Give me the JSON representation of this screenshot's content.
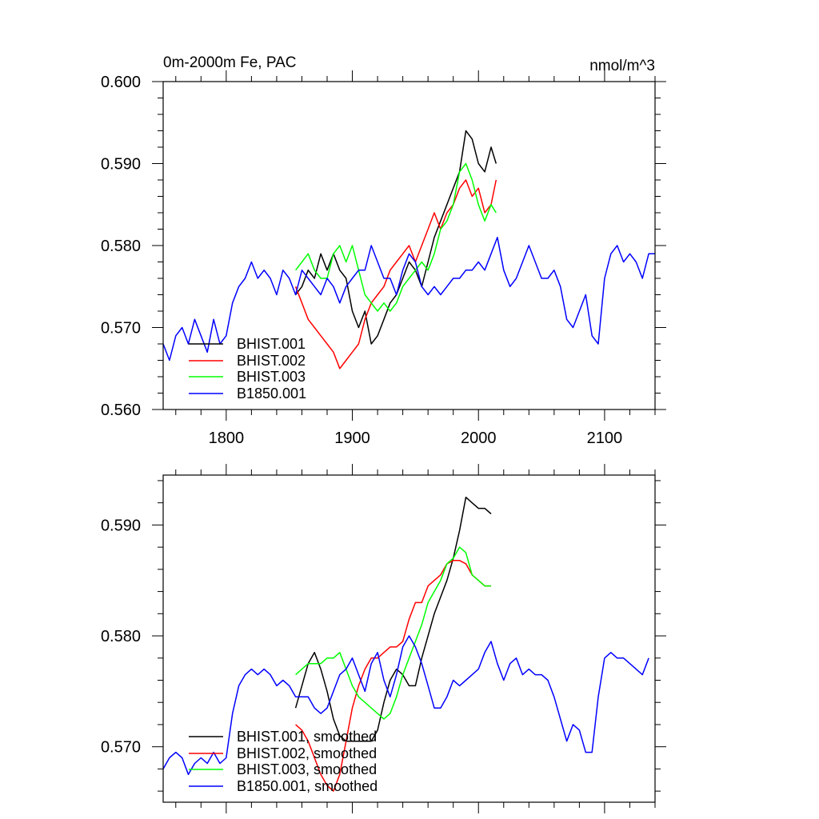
{
  "chart_data": [
    {
      "type": "line",
      "title": "0m-2000m Fe, PAC",
      "units": "nmol/m^3",
      "xlim": [
        1750,
        2140
      ],
      "ylim": [
        0.56,
        0.6
      ],
      "x_ticks": [
        1800,
        1900,
        2000,
        2100
      ],
      "x_tick_labels": [
        "1800",
        "1900",
        "2000",
        "2100"
      ],
      "y_ticks": [
        0.56,
        0.57,
        0.58,
        0.59,
        0.6
      ],
      "y_tick_labels": [
        "0.560",
        "0.570",
        "0.580",
        "0.590",
        "0.600"
      ],
      "grid": false,
      "legend_position": "bottom-left",
      "series": [
        {
          "name": "BHIST.001",
          "color": "#000000",
          "x": [
            1855,
            1860,
            1865,
            1870,
            1875,
            1880,
            1885,
            1890,
            1895,
            1900,
            1905,
            1910,
            1915,
            1920,
            1925,
            1930,
            1935,
            1940,
            1945,
            1950,
            1955,
            1960,
            1965,
            1970,
            1975,
            1980,
            1985,
            1990,
            1995,
            2000,
            2005,
            2010,
            2014
          ],
          "y": [
            0.574,
            0.575,
            0.577,
            0.576,
            0.579,
            0.577,
            0.579,
            0.577,
            0.576,
            0.572,
            0.57,
            0.572,
            0.568,
            0.569,
            0.571,
            0.573,
            0.574,
            0.576,
            0.578,
            0.577,
            0.575,
            0.578,
            0.581,
            0.583,
            0.585,
            0.587,
            0.589,
            0.594,
            0.593,
            0.59,
            0.589,
            0.592,
            0.59
          ]
        },
        {
          "name": "BHIST.002",
          "color": "#ff0000",
          "x": [
            1855,
            1860,
            1865,
            1870,
            1875,
            1880,
            1885,
            1890,
            1895,
            1900,
            1905,
            1910,
            1915,
            1920,
            1925,
            1930,
            1935,
            1940,
            1945,
            1950,
            1955,
            1960,
            1965,
            1970,
            1975,
            1980,
            1985,
            1990,
            1995,
            2000,
            2005,
            2010,
            2014
          ],
          "y": [
            0.575,
            0.573,
            0.571,
            0.57,
            0.569,
            0.568,
            0.567,
            0.565,
            0.566,
            0.567,
            0.568,
            0.571,
            0.573,
            0.574,
            0.575,
            0.577,
            0.578,
            0.579,
            0.58,
            0.578,
            0.58,
            0.582,
            0.584,
            0.582,
            0.584,
            0.585,
            0.587,
            0.588,
            0.586,
            0.587,
            0.584,
            0.585,
            0.588
          ]
        },
        {
          "name": "BHIST.003",
          "color": "#00ff00",
          "x": [
            1855,
            1860,
            1865,
            1870,
            1875,
            1880,
            1885,
            1890,
            1895,
            1900,
            1905,
            1910,
            1915,
            1920,
            1925,
            1930,
            1935,
            1940,
            1945,
            1950,
            1955,
            1960,
            1965,
            1970,
            1975,
            1980,
            1985,
            1990,
            1995,
            2000,
            2005,
            2010,
            2014
          ],
          "y": [
            0.577,
            0.578,
            0.579,
            0.577,
            0.576,
            0.576,
            0.579,
            0.58,
            0.578,
            0.58,
            0.577,
            0.574,
            0.573,
            0.572,
            0.573,
            0.572,
            0.573,
            0.575,
            0.576,
            0.577,
            0.578,
            0.577,
            0.579,
            0.582,
            0.583,
            0.585,
            0.589,
            0.59,
            0.588,
            0.585,
            0.583,
            0.585,
            0.584
          ]
        },
        {
          "name": "B1850.001",
          "color": "#0000ff",
          "x": [
            1750,
            1755,
            1760,
            1765,
            1770,
            1775,
            1780,
            1785,
            1790,
            1795,
            1800,
            1805,
            1810,
            1815,
            1820,
            1825,
            1830,
            1835,
            1840,
            1845,
            1850,
            1855,
            1860,
            1865,
            1870,
            1875,
            1880,
            1885,
            1890,
            1895,
            1900,
            1905,
            1910,
            1915,
            1920,
            1925,
            1930,
            1935,
            1940,
            1945,
            1950,
            1955,
            1960,
            1965,
            1970,
            1975,
            1980,
            1985,
            1990,
            1995,
            2000,
            2005,
            2010,
            2015,
            2020,
            2025,
            2030,
            2035,
            2040,
            2045,
            2050,
            2055,
            2060,
            2065,
            2070,
            2075,
            2080,
            2085,
            2090,
            2095,
            2100,
            2105,
            2110,
            2115,
            2120,
            2125,
            2130,
            2135,
            2140
          ],
          "y": [
            0.568,
            0.566,
            0.569,
            0.57,
            0.568,
            0.571,
            0.569,
            0.567,
            0.571,
            0.568,
            0.569,
            0.573,
            0.575,
            0.576,
            0.578,
            0.576,
            0.577,
            0.576,
            0.574,
            0.577,
            0.576,
            0.574,
            0.577,
            0.576,
            0.575,
            0.574,
            0.576,
            0.575,
            0.573,
            0.575,
            0.576,
            0.577,
            0.577,
            0.58,
            0.578,
            0.576,
            0.576,
            0.574,
            0.577,
            0.579,
            0.578,
            0.575,
            0.574,
            0.575,
            0.574,
            0.575,
            0.576,
            0.576,
            0.577,
            0.577,
            0.578,
            0.577,
            0.579,
            0.581,
            0.577,
            0.575,
            0.576,
            0.578,
            0.58,
            0.578,
            0.576,
            0.576,
            0.577,
            0.575,
            0.571,
            0.57,
            0.572,
            0.574,
            0.569,
            0.568,
            0.576,
            0.579,
            0.58,
            0.578,
            0.579,
            0.578,
            0.576,
            0.579,
            0.579
          ]
        }
      ]
    },
    {
      "type": "line",
      "title": "",
      "xlim": [
        1750,
        2140
      ],
      "ylim": [
        0.565,
        0.5945
      ],
      "x_ticks": [
        1800,
        1900,
        2000,
        2100
      ],
      "y_ticks": [
        0.57,
        0.58,
        0.59
      ],
      "y_tick_labels": [
        "0.570",
        "0.580",
        "0.590"
      ],
      "grid": false,
      "legend_position": "bottom-left",
      "series": [
        {
          "name": "BHIST.001, smoothed",
          "color": "#000000",
          "x": [
            1855,
            1860,
            1865,
            1870,
            1875,
            1880,
            1885,
            1890,
            1895,
            1900,
            1905,
            1910,
            1915,
            1920,
            1925,
            1930,
            1935,
            1940,
            1945,
            1950,
            1955,
            1960,
            1965,
            1970,
            1975,
            1980,
            1985,
            1990,
            1995,
            2000,
            2005,
            2010
          ],
          "y": [
            0.5735,
            0.5755,
            0.5775,
            0.5785,
            0.577,
            0.575,
            0.5725,
            0.571,
            0.5705,
            0.5705,
            0.5705,
            0.5705,
            0.5705,
            0.5715,
            0.574,
            0.576,
            0.577,
            0.5765,
            0.5755,
            0.5755,
            0.578,
            0.58,
            0.582,
            0.5835,
            0.585,
            0.587,
            0.5895,
            0.5925,
            0.592,
            0.5915,
            0.5915,
            0.591
          ]
        },
        {
          "name": "BHIST.002, smoothed",
          "color": "#ff0000",
          "x": [
            1855,
            1860,
            1865,
            1870,
            1875,
            1880,
            1885,
            1890,
            1895,
            1900,
            1905,
            1910,
            1915,
            1920,
            1925,
            1930,
            1935,
            1940,
            1945,
            1950,
            1955,
            1960,
            1965,
            1970,
            1975,
            1980,
            1985,
            1990,
            1995,
            2000,
            2005,
            2010
          ],
          "y": [
            0.572,
            0.5715,
            0.5705,
            0.569,
            0.5675,
            0.5665,
            0.566,
            0.5675,
            0.5705,
            0.5735,
            0.5755,
            0.577,
            0.578,
            0.578,
            0.5785,
            0.579,
            0.579,
            0.5795,
            0.5815,
            0.583,
            0.583,
            0.5845,
            0.585,
            0.5855,
            0.5865,
            0.5868,
            0.5868,
            0.5865,
            0.5855,
            0.585,
            0.5845,
            0.5845
          ]
        },
        {
          "name": "BHIST.003, smoothed",
          "color": "#00ff00",
          "x": [
            1855,
            1860,
            1865,
            1870,
            1875,
            1880,
            1885,
            1890,
            1895,
            1900,
            1905,
            1910,
            1915,
            1920,
            1925,
            1930,
            1935,
            1940,
            1945,
            1950,
            1955,
            1960,
            1965,
            1970,
            1975,
            1980,
            1985,
            1990,
            1995,
            2000,
            2005,
            2010
          ],
          "y": [
            0.5765,
            0.577,
            0.5775,
            0.5775,
            0.5775,
            0.578,
            0.578,
            0.5785,
            0.577,
            0.5755,
            0.5745,
            0.574,
            0.5735,
            0.573,
            0.5725,
            0.573,
            0.5745,
            0.5765,
            0.578,
            0.5795,
            0.581,
            0.583,
            0.584,
            0.585,
            0.5865,
            0.587,
            0.588,
            0.5875,
            0.5855,
            0.585,
            0.5845,
            0.5845
          ]
        },
        {
          "name": "B1850.001, smoothed",
          "color": "#0000ff",
          "x": [
            1750,
            1755,
            1760,
            1765,
            1770,
            1775,
            1780,
            1785,
            1790,
            1795,
            1800,
            1805,
            1810,
            1815,
            1820,
            1825,
            1830,
            1835,
            1840,
            1845,
            1850,
            1855,
            1860,
            1865,
            1870,
            1875,
            1880,
            1885,
            1890,
            1895,
            1900,
            1905,
            1910,
            1915,
            1920,
            1925,
            1930,
            1935,
            1940,
            1945,
            1950,
            1955,
            1960,
            1965,
            1970,
            1975,
            1980,
            1985,
            1990,
            1995,
            2000,
            2005,
            2010,
            2015,
            2020,
            2025,
            2030,
            2035,
            2040,
            2045,
            2050,
            2055,
            2060,
            2065,
            2070,
            2075,
            2080,
            2085,
            2090,
            2095,
            2100,
            2105,
            2110,
            2115,
            2120,
            2125,
            2130,
            2135
          ],
          "y": [
            0.568,
            0.569,
            0.5695,
            0.569,
            0.5675,
            0.5685,
            0.569,
            0.5685,
            0.5695,
            0.5685,
            0.569,
            0.573,
            0.5755,
            0.5765,
            0.577,
            0.5765,
            0.577,
            0.5765,
            0.5755,
            0.576,
            0.5755,
            0.5745,
            0.5745,
            0.5745,
            0.5735,
            0.573,
            0.5735,
            0.575,
            0.5765,
            0.577,
            0.578,
            0.5765,
            0.575,
            0.5775,
            0.5785,
            0.576,
            0.5745,
            0.5765,
            0.579,
            0.58,
            0.579,
            0.5775,
            0.5755,
            0.5735,
            0.5735,
            0.5745,
            0.576,
            0.5755,
            0.576,
            0.5765,
            0.577,
            0.5785,
            0.5795,
            0.5775,
            0.576,
            0.5775,
            0.578,
            0.5765,
            0.577,
            0.5765,
            0.5765,
            0.576,
            0.5745,
            0.5725,
            0.5705,
            0.572,
            0.5715,
            0.5695,
            0.5695,
            0.5745,
            0.578,
            0.5785,
            0.578,
            0.578,
            0.5775,
            0.577,
            0.5765,
            0.578
          ]
        }
      ]
    }
  ]
}
